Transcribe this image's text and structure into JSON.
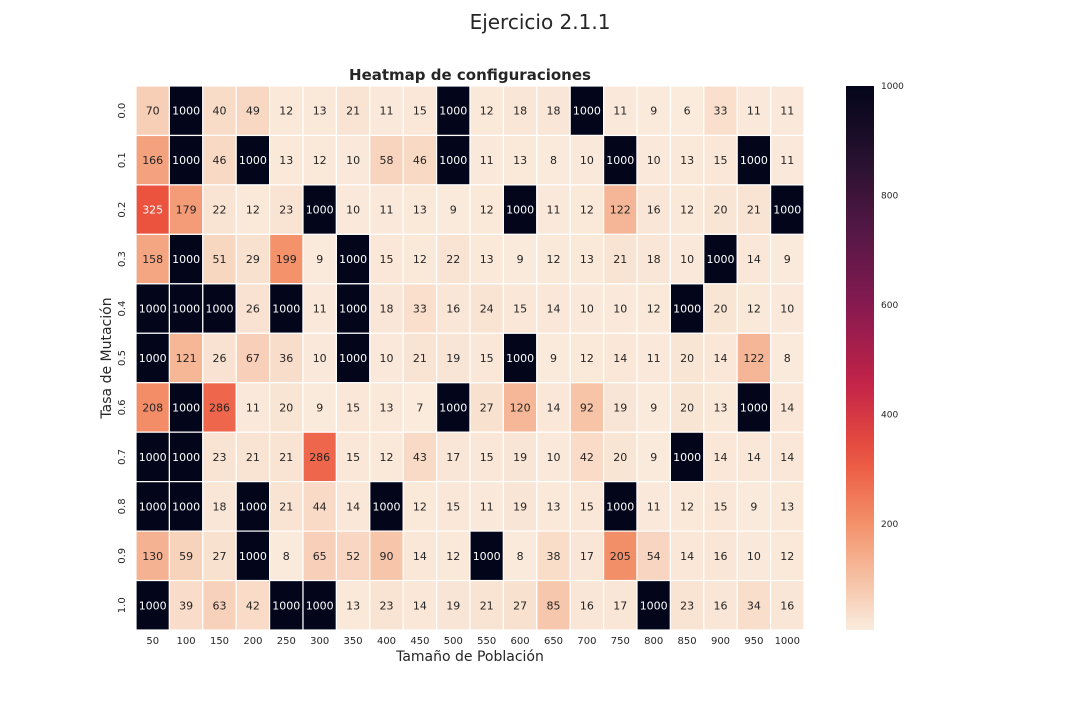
{
  "figure": {
    "suptitle": "Ejercicio 2.1.1"
  },
  "chart_data": {
    "type": "heatmap",
    "title": "Heatmap de configuraciones",
    "xlabel": "Tamaño de Población",
    "ylabel": "Tasa de Mutación",
    "x": [
      "50",
      "100",
      "150",
      "200",
      "250",
      "300",
      "350",
      "400",
      "450",
      "500",
      "550",
      "600",
      "650",
      "700",
      "750",
      "800",
      "850",
      "900",
      "950",
      "1000"
    ],
    "y": [
      "0.0",
      "0.1",
      "0.2",
      "0.3",
      "0.4",
      "0.5",
      "0.6",
      "0.7",
      "0.8",
      "0.9",
      "1.0"
    ],
    "values": [
      [
        70,
        1000,
        40,
        49,
        12,
        13,
        21,
        11,
        15,
        1000,
        12,
        18,
        18,
        1000,
        11,
        9,
        6,
        33,
        11,
        11
      ],
      [
        166,
        1000,
        46,
        1000,
        13,
        12,
        10,
        58,
        46,
        1000,
        11,
        13,
        8,
        10,
        1000,
        10,
        13,
        15,
        1000,
        11
      ],
      [
        325,
        179,
        22,
        12,
        23,
        1000,
        10,
        11,
        13,
        9,
        12,
        1000,
        11,
        12,
        122,
        16,
        12,
        20,
        21,
        1000
      ],
      [
        158,
        1000,
        51,
        29,
        199,
        9,
        1000,
        15,
        12,
        22,
        13,
        9,
        12,
        13,
        21,
        18,
        10,
        1000,
        14,
        9
      ],
      [
        1000,
        1000,
        1000,
        26,
        1000,
        11,
        1000,
        18,
        33,
        16,
        24,
        15,
        14,
        10,
        10,
        12,
        1000,
        20,
        12,
        10
      ],
      [
        1000,
        121,
        26,
        67,
        36,
        10,
        1000,
        10,
        21,
        19,
        15,
        1000,
        9,
        12,
        14,
        11,
        20,
        14,
        122,
        8
      ],
      [
        208,
        1000,
        286,
        11,
        20,
        9,
        15,
        13,
        7,
        1000,
        27,
        120,
        14,
        92,
        19,
        9,
        20,
        13,
        1000,
        14
      ],
      [
        1000,
        1000,
        23,
        21,
        21,
        286,
        15,
        12,
        43,
        17,
        15,
        19,
        10,
        42,
        20,
        9,
        1000,
        14,
        14,
        14
      ],
      [
        1000,
        1000,
        18,
        1000,
        21,
        44,
        14,
        1000,
        12,
        15,
        11,
        19,
        13,
        15,
        1000,
        11,
        12,
        15,
        9,
        13
      ],
      [
        130,
        59,
        27,
        1000,
        8,
        65,
        52,
        90,
        14,
        12,
        1000,
        8,
        38,
        17,
        205,
        54,
        14,
        16,
        10,
        12
      ],
      [
        1000,
        39,
        63,
        42,
        1000,
        1000,
        13,
        23,
        14,
        19,
        21,
        27,
        85,
        16,
        17,
        1000,
        23,
        16,
        34,
        16
      ]
    ],
    "value_range": [
      6,
      1000
    ],
    "colormap": "rocket_r",
    "annotations": true,
    "colorbar": {
      "ticks": [
        "200",
        "400",
        "600",
        "800",
        "1000"
      ],
      "tick_values": [
        200,
        400,
        600,
        800,
        1000
      ]
    },
    "colors": {
      "low": "#faebdd",
      "high": "#03051a",
      "grid_line": "#ffffff",
      "text_dark": "#262626",
      "text_light": "#ffffff"
    }
  }
}
